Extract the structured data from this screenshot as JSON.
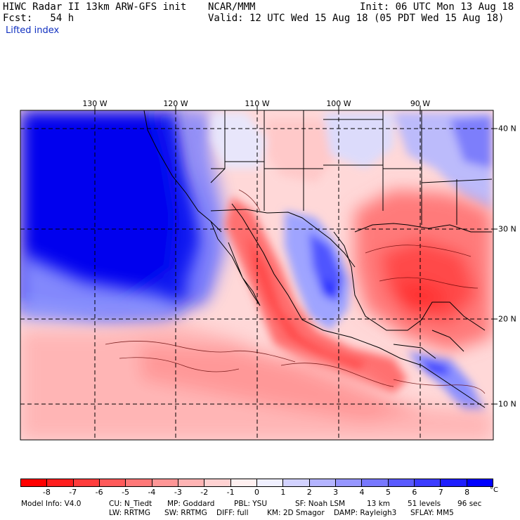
{
  "header": {
    "line1_left": "HIWC Radar II 13km ARW-GFS init",
    "line1_mid": "NCAR/MMM",
    "line1_right": "Init: 06 UTC Mon 13 Aug 18",
    "line2_left": "Fcst:   54 h",
    "line2_right": "Valid: 12 UTC Wed 15 Aug 18 (05 PDT Wed 15 Aug 18)",
    "field_name": "Lifted index"
  },
  "map": {
    "lon_labels": [
      "130 W",
      "120 W",
      "110 W",
      "100 W",
      "90 W"
    ],
    "lat_labels": [
      "40 N",
      "30 N",
      "20 N",
      "10 N"
    ],
    "shading": "filled contours (red = negative, blue = positive)",
    "grid": "dashed lat/lon lines every 10 degrees",
    "boundaries": "coastlines, national and state/province borders"
  },
  "colorbar": {
    "labels": [
      "-8",
      "-7",
      "-6",
      "-5",
      "-4",
      "-3",
      "-2",
      "-1",
      "0",
      "1",
      "2",
      "3",
      "4",
      "5",
      "6",
      "7",
      "8"
    ],
    "colors": [
      "#ff0000",
      "#ff1e1e",
      "#ff3c3c",
      "#ff5a5a",
      "#ff7878",
      "#ff9696",
      "#ffb4b4",
      "#ffd2d2",
      "#fff0f0",
      "#f0f0ff",
      "#d2d2ff",
      "#b4b4ff",
      "#9696ff",
      "#7878ff",
      "#5a5aff",
      "#3c3cff",
      "#1e1eff",
      "#0000ff"
    ],
    "unit": "°C"
  },
  "model_info": {
    "line1": [
      "Model Info: V4.0",
      "CU: N_Tiedt",
      "MP: Goddard",
      "PBL: YSU",
      "SF: Noah LSM",
      "13 km",
      "51 levels",
      "96 sec"
    ],
    "line2": [
      "LW: RRTMG",
      "SW: RRTMG",
      "DIFF: full",
      "KM: 2D Smagor",
      "DAMP: Rayleigh3",
      "SFLAY: MM5"
    ]
  }
}
